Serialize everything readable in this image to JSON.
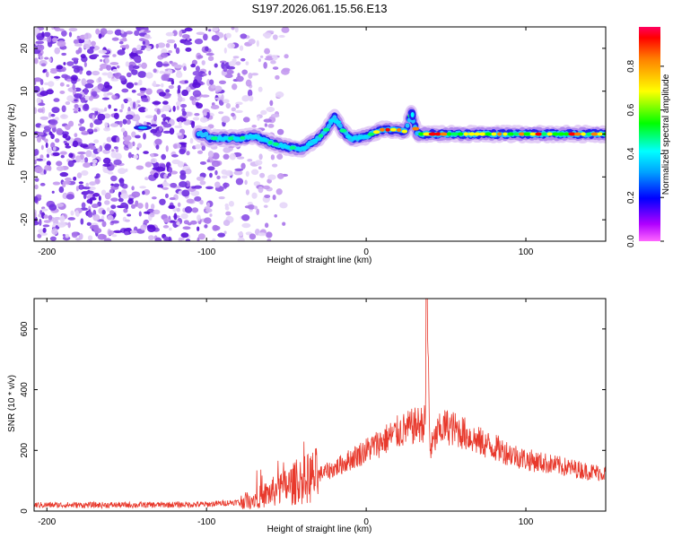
{
  "title": "S197.2026.061.15.56.E13",
  "colors": {
    "snr_line": "#e8392c",
    "axis": "#000000",
    "background": "#ffffff"
  },
  "chart_data": [
    {
      "type": "heatmap",
      "name": "spectrogram",
      "xlabel": "Height of straight line (km)",
      "ylabel": "Frequency (Hz)",
      "xlim": [
        -208,
        150
      ],
      "ylim": [
        -25,
        25
      ],
      "xticks": [
        -200,
        -100,
        0,
        100
      ],
      "xtick_labels": [
        "-200",
        "-100",
        "0",
        "100"
      ],
      "yticks": [
        -20,
        -10,
        0,
        10,
        20
      ],
      "ytick_labels": [
        "-20",
        "-10",
        "0",
        "10",
        "20"
      ],
      "ridge": {
        "description_points_x_km": [
          -100,
          -80,
          -70,
          -60,
          -50,
          -40,
          -30,
          -25,
          -20,
          -15,
          -10,
          -5,
          0,
          10,
          20,
          25,
          28,
          32,
          40,
          60,
          80,
          100,
          120,
          150
        ],
        "frequency_hz": [
          -1,
          -1,
          -0.5,
          -2,
          -3,
          -3.5,
          -1,
          1,
          4,
          1,
          -1,
          -1,
          -0.5,
          1,
          1,
          0.5,
          5,
          0,
          0,
          0,
          0,
          0,
          0,
          0
        ]
      },
      "noise_region_x_km": [
        -208,
        -70
      ]
    },
    {
      "type": "colorbar",
      "name": "amplitude-colorbar",
      "label": "Normalized spectral amplitude",
      "range": [
        0,
        0.98
      ],
      "ticks": [
        0.0,
        0.2,
        0.4,
        0.6,
        0.8
      ],
      "tick_labels": [
        "0.0",
        "0.2",
        "0.4",
        "0.6",
        "0.8"
      ],
      "colormap": [
        "#ff00ff",
        "#0000ff",
        "#00ffff",
        "#00ff00",
        "#ffff00",
        "#ff0000",
        "#ff0080"
      ]
    },
    {
      "type": "line",
      "name": "snr",
      "xlabel": "Height of straight line (km)",
      "ylabel": "SNR (10 * v/v)",
      "xlim": [
        -208,
        150
      ],
      "ylim": [
        0,
        700
      ],
      "xticks": [
        -200,
        -100,
        0,
        100
      ],
      "xtick_labels": [
        "-200",
        "-100",
        "0",
        "100"
      ],
      "yticks": [
        0,
        200,
        400,
        600
      ],
      "ytick_labels": [
        "0",
        "200",
        "400",
        "600"
      ],
      "envelope_x_km": [
        -208,
        -150,
        -100,
        -80,
        -70,
        -60,
        -50,
        -40,
        -30,
        -20,
        -10,
        0,
        10,
        20,
        30,
        37,
        38,
        40,
        45,
        50,
        60,
        70,
        80,
        90,
        100,
        110,
        120,
        130,
        140,
        150
      ],
      "envelope_snr": [
        20,
        20,
        22,
        30,
        40,
        60,
        80,
        100,
        120,
        140,
        170,
        200,
        230,
        260,
        280,
        290,
        700,
        200,
        260,
        280,
        260,
        230,
        210,
        190,
        170,
        160,
        150,
        140,
        130,
        125
      ]
    }
  ]
}
